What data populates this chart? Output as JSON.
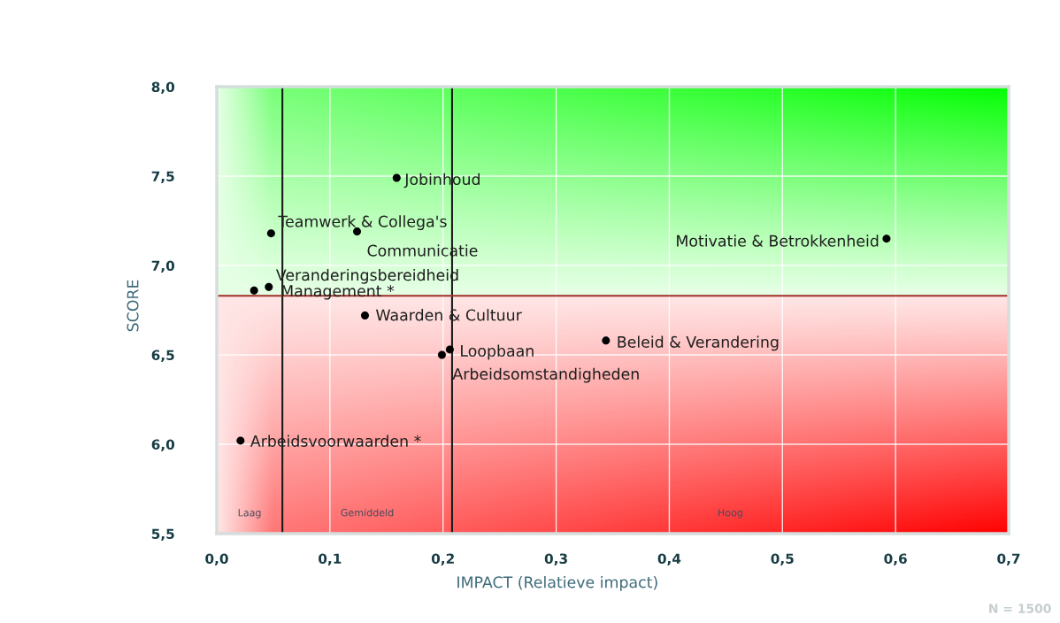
{
  "chart_data": {
    "type": "scatter",
    "xlabel": "IMPACT (Relatieve impact)",
    "ylabel": "SCORE",
    "xlim": [
      0,
      0.7
    ],
    "ylim": [
      5.5,
      8.0
    ],
    "xticks": [
      {
        "value": 0,
        "label": "0,0"
      },
      {
        "value": 0.1,
        "label": "0,1"
      },
      {
        "value": 0.2,
        "label": "0,2"
      },
      {
        "value": 0.3,
        "label": "0,3"
      },
      {
        "value": 0.4,
        "label": "0,4"
      },
      {
        "value": 0.5,
        "label": "0,5"
      },
      {
        "value": 0.6,
        "label": "0,6"
      },
      {
        "value": 0.7,
        "label": "0,7"
      }
    ],
    "yticks": [
      {
        "value": 5.5,
        "label": "5,5"
      },
      {
        "value": 6.0,
        "label": "6,0"
      },
      {
        "value": 6.5,
        "label": "6,5"
      },
      {
        "value": 7.0,
        "label": "7,0"
      },
      {
        "value": 7.5,
        "label": "7,5"
      },
      {
        "value": 8.0,
        "label": "8,0"
      }
    ],
    "grid": true,
    "marker": "circle",
    "series": [
      {
        "color": "#000000",
        "x": [
          0.159,
          0.048,
          0.124,
          0.592,
          0.046,
          0.033,
          0.131,
          0.344,
          0.206,
          0.199,
          0.021
        ],
        "values": [
          7.49,
          7.18,
          7.19,
          7.15,
          6.88,
          6.86,
          6.72,
          6.58,
          6.53,
          6.5,
          6.02
        ]
      }
    ],
    "ref_lines": [
      {
        "axis": "x",
        "value": 0.058,
        "color": "#1a1a1a"
      },
      {
        "axis": "x",
        "value": 0.208,
        "color": "#1a1a1a"
      },
      {
        "axis": "y",
        "value": 6.83,
        "color": "#a0302a"
      }
    ],
    "bands": [
      {
        "axis": "y",
        "from": 6.83,
        "to": 8.0,
        "color": "#00ff00"
      },
      {
        "axis": "y",
        "from": 5.5,
        "to": 6.83,
        "color": "#ff0000"
      }
    ],
    "annotations": [
      {
        "text": "Jobinhoud",
        "x": 0.159,
        "y": 7.49
      },
      {
        "text": "Teamwerk & Collega's",
        "x": 0.048,
        "y": 7.18
      },
      {
        "text": "Communicatie",
        "x": 0.124,
        "y": 7.19
      },
      {
        "text": "Motivatie & Betrokkenheid",
        "x": 0.592,
        "y": 7.15
      },
      {
        "text": "Veranderingsbereidheid",
        "x": 0.046,
        "y": 6.88
      },
      {
        "text": "Management *",
        "x": 0.033,
        "y": 6.86
      },
      {
        "text": "Waarden & Cultuur",
        "x": 0.131,
        "y": 6.72
      },
      {
        "text": "Beleid & Verandering",
        "x": 0.344,
        "y": 6.58
      },
      {
        "text": "Loopbaan",
        "x": 0.206,
        "y": 6.53
      },
      {
        "text": "Arbeidsomstandigheden",
        "x": 0.199,
        "y": 6.5
      },
      {
        "text": "Arbeidsvoorwaarden *",
        "x": 0.021,
        "y": 6.02
      },
      "Laag",
      "Gemiddeld",
      "Hoog",
      "N = 1500"
    ]
  }
}
